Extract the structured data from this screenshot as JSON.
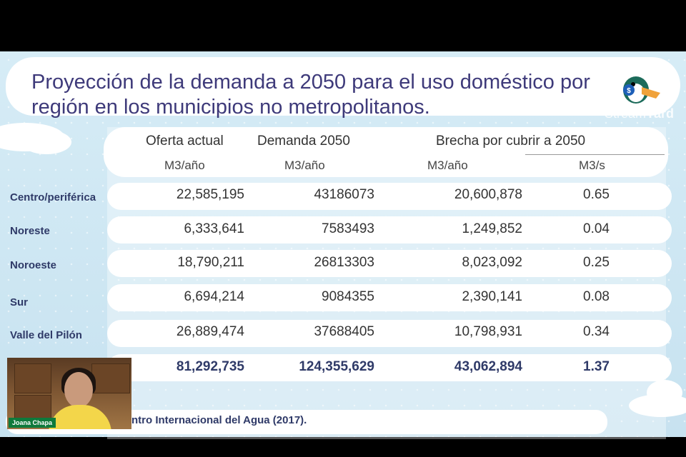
{
  "slide": {
    "title_line1": "Proyección de la demanda a 2050 para el uso doméstico por",
    "title_line2": "región en los municipios no metropolitanos.",
    "source": "ntro Internacional del Agua (2017)."
  },
  "table": {
    "headers": {
      "oferta": "Oferta actual",
      "demanda": "Demanda 2050",
      "brecha": "Brecha por cubrir a 2050"
    },
    "units": {
      "oferta": "M3/año",
      "demanda": "M3/año",
      "brecha_anual": "M3/año",
      "brecha_seg": "M3/s"
    },
    "rows": [
      {
        "region": "Centro/periférica",
        "oferta": "22,585,195",
        "demanda": "43186073",
        "brecha": "20,600,878",
        "ms": "0.65"
      },
      {
        "region": "Noreste",
        "oferta": "6,333,641",
        "demanda": "7583493",
        "brecha": "1,249,852",
        "ms": "0.04"
      },
      {
        "region": "Noroeste",
        "oferta": "18,790,211",
        "demanda": "26813303",
        "brecha": "8,023,092",
        "ms": "0.25"
      },
      {
        "region": "Sur",
        "oferta": "6,694,214",
        "demanda": "9084355",
        "brecha": "2,390,141",
        "ms": "0.08"
      },
      {
        "region": "Valle del Pilón",
        "oferta": "26,889,474",
        "demanda": "37688405",
        "brecha": "10,798,931",
        "ms": "0.34"
      }
    ],
    "total": {
      "oferta": "81,292,735",
      "demanda": "124,355,629",
      "brecha": "43,062,894",
      "ms": "1.37"
    }
  },
  "webcam": {
    "participant_name": "Joana Chapa"
  },
  "watermark": {
    "produced_by": "Producido con",
    "brand_part1": "Stream",
    "brand_part2": "Yard"
  }
}
